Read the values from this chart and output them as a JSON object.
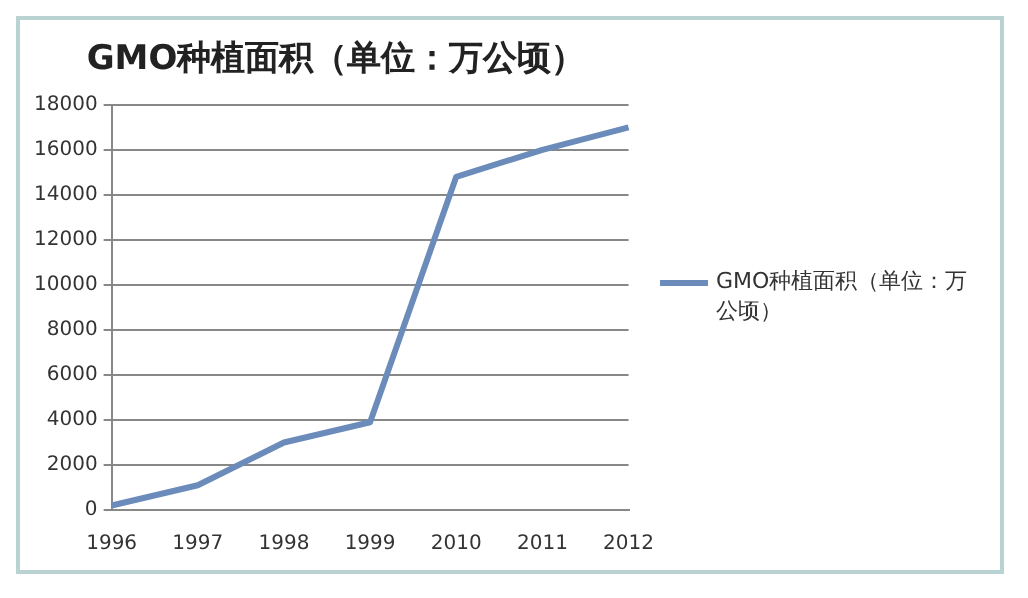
{
  "chart_data": {
    "type": "line",
    "title": "GMO种植面积（单位：万公顷）",
    "categories": [
      "1996",
      "1997",
      "1998",
      "1999",
      "2010",
      "2011",
      "2012"
    ],
    "series": [
      {
        "name": "GMO种植面积（单位：万公顷）",
        "color": "#6b8cba",
        "values": [
          200,
          1100,
          3000,
          3900,
          14800,
          16000,
          17000
        ]
      }
    ],
    "ylim": [
      0,
      18000
    ],
    "yticks": [
      0,
      2000,
      4000,
      6000,
      8000,
      10000,
      12000,
      14000,
      16000,
      18000
    ],
    "grid": "y",
    "legend": "right",
    "marker": "none",
    "line_style": "solid"
  }
}
